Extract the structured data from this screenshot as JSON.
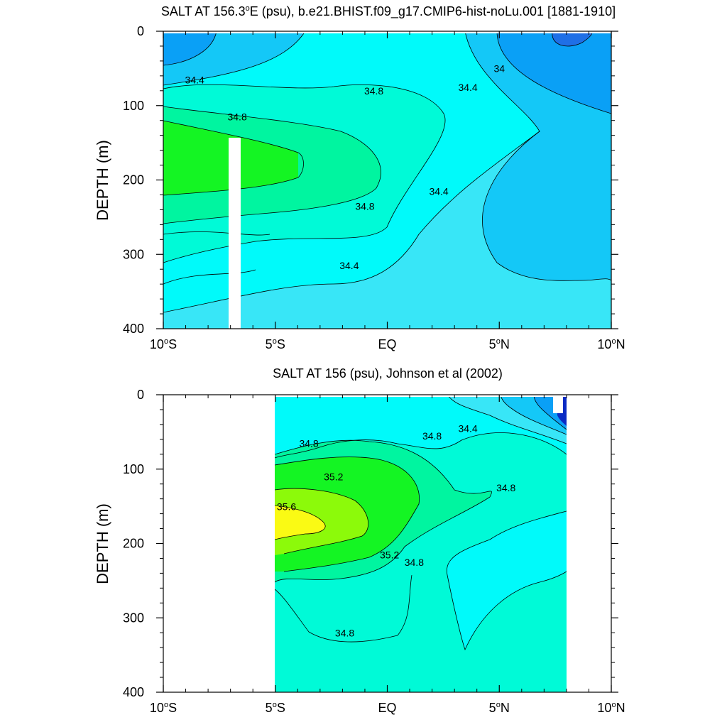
{
  "chart_data": [
    {
      "type": "contour",
      "title": "SALT AT 156.3°E (psu), b.e21.BHIST.f09_g17.CMIP6-hist-noLu.001 [1881-1910]",
      "title_parts": {
        "a": "SALT AT 156.3",
        "deg": "o",
        "b": "E (psu), b.e21.BHIST.f09_g17.CMIP6-hist-noLu.001 [1881-1910]"
      },
      "ylabel": "DEPTH (m)",
      "xlabel": "",
      "xlim": [
        -10,
        10
      ],
      "ylim": [
        400,
        0
      ],
      "y_ticks": [
        {
          "value": 0,
          "label": "0"
        },
        {
          "value": 100,
          "label": "100"
        },
        {
          "value": 200,
          "label": "200"
        },
        {
          "value": 300,
          "label": "300"
        },
        {
          "value": 400,
          "label": "400"
        }
      ],
      "x_ticks": [
        {
          "value": -10,
          "num": "10",
          "deg": "o",
          "hem": "S"
        },
        {
          "value": -5,
          "num": "5",
          "deg": "o",
          "hem": "S"
        },
        {
          "value": 0,
          "num": "EQ",
          "deg": "",
          "hem": ""
        },
        {
          "value": 5,
          "num": "5",
          "deg": "o",
          "hem": "N"
        },
        {
          "value": 10,
          "num": "10",
          "deg": "o",
          "hem": "N"
        }
      ],
      "contour_labels": [
        {
          "text": "34.4",
          "x": -8.6,
          "y": 70
        },
        {
          "text": "34.8",
          "x": -6.7,
          "y": 120
        },
        {
          "text": "34.8",
          "x": -0.6,
          "y": 85
        },
        {
          "text": "34.4",
          "x": 3.6,
          "y": 80
        },
        {
          "text": "34",
          "x": 5.0,
          "y": 55
        },
        {
          "text": "34.4",
          "x": 2.3,
          "y": 220
        },
        {
          "text": "34.8",
          "x": -1.0,
          "y": 240
        },
        {
          "text": "34.4",
          "x": -1.7,
          "y": 320
        }
      ]
    },
    {
      "type": "contour",
      "title": "SALT AT 156 (psu), Johnson et al (2002)",
      "ylabel": "DEPTH (m)",
      "xlabel": "",
      "xlim": [
        -10,
        10
      ],
      "ylim": [
        400,
        0
      ],
      "data_extent_x": [
        -5,
        8
      ],
      "y_ticks": [
        {
          "value": 0,
          "label": "0"
        },
        {
          "value": 100,
          "label": "100"
        },
        {
          "value": 200,
          "label": "200"
        },
        {
          "value": 300,
          "label": "300"
        },
        {
          "value": 400,
          "label": "400"
        }
      ],
      "x_ticks": [
        {
          "value": -10,
          "num": "10",
          "deg": "o",
          "hem": "S"
        },
        {
          "value": -5,
          "num": "5",
          "deg": "o",
          "hem": "S"
        },
        {
          "value": 0,
          "num": "EQ",
          "deg": "",
          "hem": ""
        },
        {
          "value": 5,
          "num": "5",
          "deg": "o",
          "hem": "N"
        },
        {
          "value": 10,
          "num": "10",
          "deg": "o",
          "hem": "N"
        }
      ],
      "contour_labels": [
        {
          "text": "34.8",
          "x": -3.5,
          "y": 70
        },
        {
          "text": "34.8",
          "x": 2.0,
          "y": 60
        },
        {
          "text": "34.4",
          "x": 3.6,
          "y": 50
        },
        {
          "text": "35.2",
          "x": -2.4,
          "y": 115
        },
        {
          "text": "34.8",
          "x": 5.3,
          "y": 130
        },
        {
          "text": "35.6",
          "x": -4.5,
          "y": 155
        },
        {
          "text": "35.2",
          "x": 0.1,
          "y": 220
        },
        {
          "text": "34.8",
          "x": 1.2,
          "y": 230
        },
        {
          "text": "34.8",
          "x": -1.9,
          "y": 325
        }
      ]
    }
  ],
  "colors": {
    "s_lt34": "#0a2bc4",
    "s_34_0": "#1f6fe6",
    "s_34_2": "#0aa0f6",
    "s_34_4": "#14c8f7",
    "s_34_6": "#38e6f7",
    "s_34_8": "#00fafa",
    "s_35_0": "#00fad7",
    "s_35_2": "#00f5a0",
    "s_35_4": "#14f523",
    "s_35_6": "#8cfa0a",
    "s_35_8": "#fafa14",
    "contour_line": "#000000",
    "axis": "#000000"
  }
}
